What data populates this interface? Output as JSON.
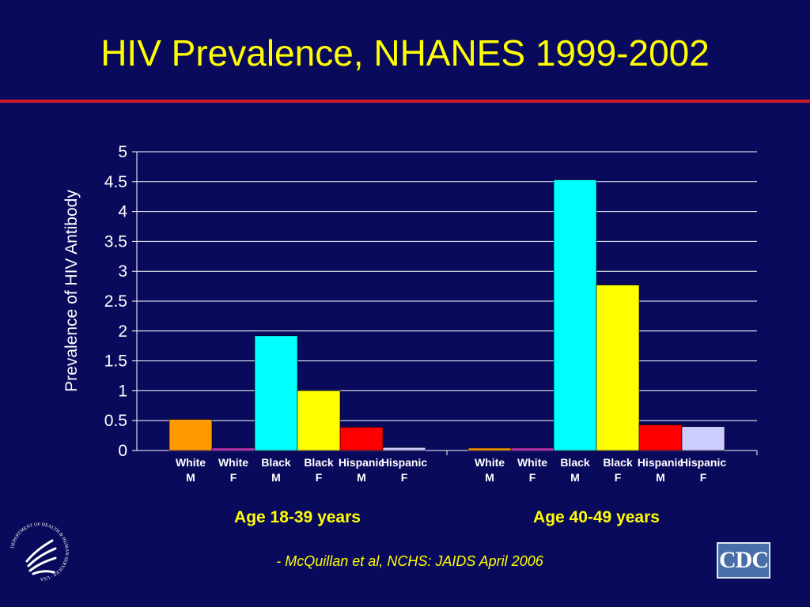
{
  "slide": {
    "title": "HIV Prevalence, NHANES 1999-2002",
    "citation": "- McQuillan et al, NCHS:  JAIDS April 2006",
    "logos": {
      "hhs_text": "DEPARTMENT OF HEALTH & HUMAN SERVICES · USA",
      "cdc_text": "CDC"
    }
  },
  "colors": {
    "background": "#0a0a5c",
    "title": "#ffff00",
    "rule": "#cc1a2a",
    "gridline": "#ffffff"
  },
  "chart_data": {
    "type": "bar",
    "title": "",
    "xlabel": "",
    "ylabel": "Prevalence of HIV Antibody",
    "ylim": [
      0,
      5
    ],
    "yticks": [
      "0",
      "0.5",
      "1",
      "1.5",
      "2",
      "2.5",
      "3",
      "3.5",
      "4",
      "4.5",
      "5"
    ],
    "grid": true,
    "groups": [
      {
        "label": "Age 18-39 years",
        "bars": [
          {
            "label": [
              "White",
              "M"
            ],
            "value": 0.52,
            "color": "#ff9900"
          },
          {
            "label": [
              "White",
              "F"
            ],
            "value": 0.04,
            "color": "#cc33cc"
          },
          {
            "label": [
              "Black",
              "M"
            ],
            "value": 1.92,
            "color": "#00ffff"
          },
          {
            "label": [
              "Black",
              "F"
            ],
            "value": 1.0,
            "color": "#ffff00"
          },
          {
            "label": [
              "Hispanic",
              "M"
            ],
            "value": 0.39,
            "color": "#ff0000"
          },
          {
            "label": [
              "Hispanic",
              "F"
            ],
            "value": 0.05,
            "color": "#ccccff"
          }
        ]
      },
      {
        "label": "Age 40-49 years",
        "bars": [
          {
            "label": [
              "White",
              "M"
            ],
            "value": 0.04,
            "color": "#ff9900"
          },
          {
            "label": [
              "White",
              "F"
            ],
            "value": 0.04,
            "color": "#cc33cc"
          },
          {
            "label": [
              "Black",
              "M"
            ],
            "value": 4.53,
            "color": "#00ffff"
          },
          {
            "label": [
              "Black",
              "F"
            ],
            "value": 2.77,
            "color": "#ffff00"
          },
          {
            "label": [
              "Hispanic",
              "M"
            ],
            "value": 0.43,
            "color": "#ff0000"
          },
          {
            "label": [
              "Hispanic",
              "F"
            ],
            "value": 0.4,
            "color": "#ccccff"
          }
        ]
      }
    ]
  }
}
